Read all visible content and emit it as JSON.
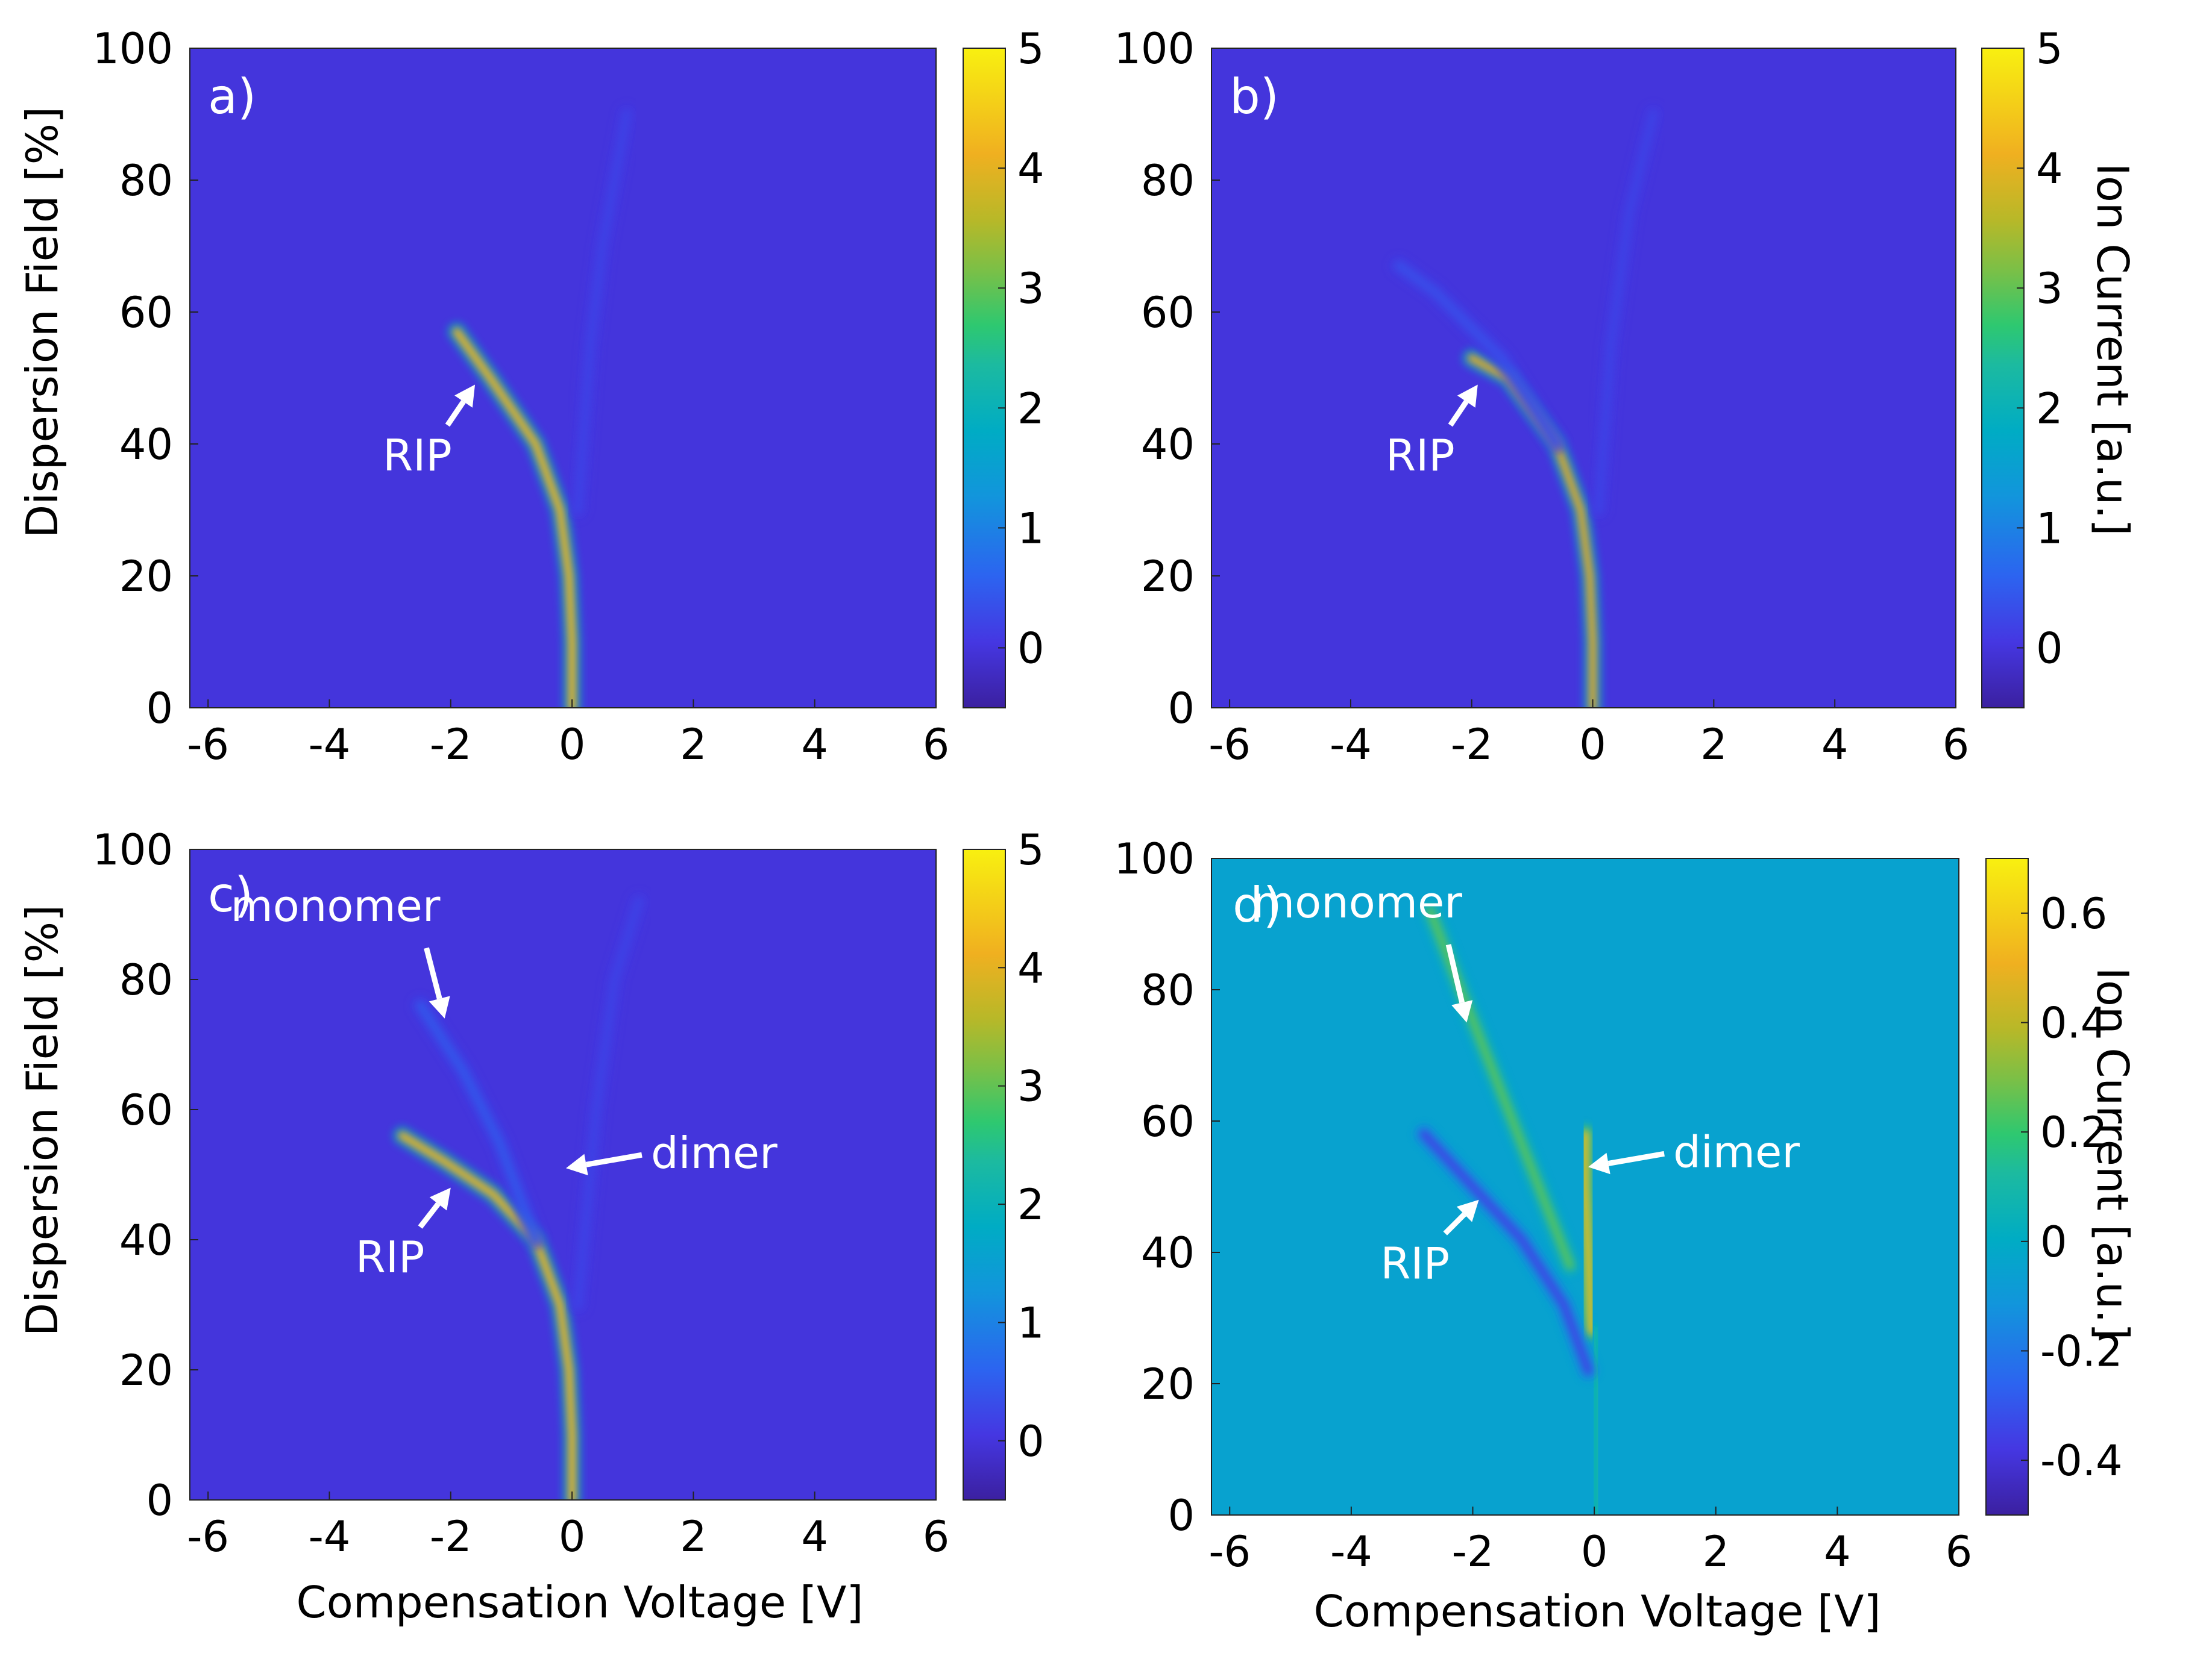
{
  "chart_data": [
    {
      "type": "heatmap",
      "panel_label": "a)",
      "xlabel": "",
      "ylabel": "Dispersion Field [%]",
      "colorbar_label": "",
      "xlim": [
        -6.3,
        6
      ],
      "ylim": [
        0,
        100
      ],
      "xticks": [
        "-6",
        "-4",
        "-2",
        "0",
        "2",
        "4",
        "6"
      ],
      "yticks": [
        "0",
        "20",
        "40",
        "60",
        "80",
        "100"
      ],
      "color_range": [
        -0.5,
        5
      ],
      "colorbar_ticks": [
        "0",
        "1",
        "2",
        "3",
        "4",
        "5"
      ],
      "features": [
        {
          "name": "RIP",
          "points": [
            [
              0.0,
              0
            ],
            [
              0.0,
              10
            ],
            [
              -0.05,
              20
            ],
            [
              -0.2,
              30
            ],
            [
              -0.6,
              40
            ],
            [
              -1.35,
              50
            ],
            [
              -1.9,
              57
            ]
          ],
          "peak": 4.3
        },
        {
          "name": "faint trace",
          "points": [
            [
              0.1,
              30
            ],
            [
              0.3,
              55
            ],
            [
              0.5,
              70
            ],
            [
              0.9,
              90
            ]
          ],
          "peak": 0.2
        }
      ],
      "annotations": [
        {
          "text": "RIP",
          "x": -2.55,
          "y": 36,
          "arrow_to": [
            -1.6,
            49
          ]
        }
      ]
    },
    {
      "type": "heatmap",
      "panel_label": "b)",
      "xlabel": "",
      "ylabel": "",
      "colorbar_label": "Ion Current [a.u.]",
      "xlim": [
        -6.3,
        6
      ],
      "ylim": [
        0,
        100
      ],
      "xticks": [
        "-6",
        "-4",
        "-2",
        "0",
        "2",
        "4",
        "6"
      ],
      "yticks": [
        "0",
        "20",
        "40",
        "60",
        "80",
        "100"
      ],
      "color_range": [
        -0.5,
        5
      ],
      "colorbar_ticks": [
        "0",
        "1",
        "2",
        "3",
        "4",
        "5"
      ],
      "features": [
        {
          "name": "RIP",
          "points": [
            [
              0.0,
              0
            ],
            [
              0.0,
              10
            ],
            [
              -0.05,
              20
            ],
            [
              -0.2,
              30
            ],
            [
              -0.6,
              40
            ],
            [
              -1.4,
              50
            ],
            [
              -2.0,
              53
            ]
          ],
          "peak": 4.0
        },
        {
          "name": "upper branch",
          "points": [
            [
              -0.6,
              40
            ],
            [
              -1.5,
              53
            ],
            [
              -2.6,
              63
            ],
            [
              -3.2,
              67
            ]
          ],
          "peak": 0.35
        },
        {
          "name": "faint trace",
          "points": [
            [
              0.1,
              30
            ],
            [
              0.3,
              55
            ],
            [
              0.6,
              75
            ],
            [
              1.0,
              90
            ]
          ],
          "peak": 0.2
        }
      ],
      "annotations": [
        {
          "text": "RIP",
          "x": -2.85,
          "y": 36,
          "arrow_to": [
            -1.9,
            49
          ]
        }
      ]
    },
    {
      "type": "heatmap",
      "panel_label": "c)",
      "xlabel": "Compensation Voltage [V]",
      "ylabel": "Dispersion Field [%]",
      "colorbar_label": "",
      "xlim": [
        -6.3,
        6
      ],
      "ylim": [
        0,
        100
      ],
      "xticks": [
        "-6",
        "-4",
        "-2",
        "0",
        "2",
        "4",
        "6"
      ],
      "yticks": [
        "0",
        "20",
        "40",
        "60",
        "80",
        "100"
      ],
      "color_range": [
        -0.5,
        5
      ],
      "colorbar_ticks": [
        "0",
        "1",
        "2",
        "3",
        "4",
        "5"
      ],
      "features": [
        {
          "name": "RIP",
          "points": [
            [
              0.0,
              0
            ],
            [
              0.0,
              10
            ],
            [
              -0.05,
              20
            ],
            [
              -0.2,
              30
            ],
            [
              -0.6,
              40
            ],
            [
              -1.3,
              47
            ],
            [
              -2.1,
              52
            ],
            [
              -2.8,
              56
            ]
          ],
          "peak": 4.3
        },
        {
          "name": "monomer",
          "points": [
            [
              -0.6,
              40
            ],
            [
              -1.2,
              55
            ],
            [
              -1.8,
              66
            ],
            [
              -2.5,
              76
            ]
          ],
          "peak": 0.45
        },
        {
          "name": "dimer",
          "points": [
            [
              0.0,
              40
            ],
            [
              0.0,
              55
            ],
            [
              0.0,
              64
            ]
          ],
          "peak": 0.45
        },
        {
          "name": "faint trace",
          "points": [
            [
              0.1,
              30
            ],
            [
              0.4,
              60
            ],
            [
              0.7,
              80
            ],
            [
              1.1,
              92
            ]
          ],
          "peak": 0.2
        }
      ],
      "annotations": [
        {
          "text": "monomer",
          "x": -3.9,
          "y": 89,
          "arrow_to": [
            -2.1,
            74
          ]
        },
        {
          "text": "dimer",
          "x": 1.3,
          "y": 51,
          "arrow_to": [
            -0.1,
            51
          ]
        },
        {
          "text": "RIP",
          "x": -3.0,
          "y": 35,
          "arrow_to": [
            -2.0,
            48
          ]
        }
      ]
    },
    {
      "type": "heatmap",
      "panel_label": "d)",
      "xlabel": "Compensation Voltage [V]",
      "ylabel": "",
      "colorbar_label": "Ion Current [a.u.]",
      "xlim": [
        -6.3,
        6
      ],
      "ylim": [
        0,
        100
      ],
      "xticks": [
        "-6",
        "-4",
        "-2",
        "0",
        "2",
        "4",
        "6"
      ],
      "yticks": [
        "0",
        "20",
        "40",
        "60",
        "80",
        "100"
      ],
      "color_range": [
        -0.5,
        0.7
      ],
      "colorbar_ticks": [
        "-0.4",
        "-0.2",
        "0",
        "0.2",
        "0.4",
        "0.6"
      ],
      "background_value": -0.05,
      "features": [
        {
          "name": "monomer",
          "points": [
            [
              -0.4,
              38
            ],
            [
              -1.0,
              52
            ],
            [
              -1.6,
              66
            ],
            [
              -2.2,
              80
            ],
            [
              -2.7,
              92
            ]
          ],
          "peak": 0.25
        },
        {
          "name": "dimer",
          "points": [
            [
              -0.05,
              28
            ],
            [
              -0.1,
              40
            ],
            [
              -0.15,
              50
            ],
            [
              -0.15,
              58
            ]
          ],
          "peak": 0.55
        },
        {
          "name": "dimer halo",
          "points": [
            [
              0.05,
              45
            ],
            [
              0.05,
              60
            ],
            [
              0.05,
              66
            ]
          ],
          "peak": 0.15
        },
        {
          "name": "lower trace",
          "points": [
            [
              0.05,
              0
            ],
            [
              0.05,
              10
            ],
            [
              0.05,
              20
            ],
            [
              0.0,
              28
            ]
          ],
          "peak": 0.1
        },
        {
          "name": "RIP depletion",
          "points": [
            [
              -0.1,
              22
            ],
            [
              -0.5,
              32
            ],
            [
              -1.2,
              42
            ],
            [
              -2.0,
              50
            ],
            [
              -2.8,
              58
            ]
          ],
          "peak": -0.35
        }
      ],
      "annotations": [
        {
          "text": "monomer",
          "x": -3.9,
          "y": 91,
          "arrow_to": [
            -2.1,
            75
          ]
        },
        {
          "text": "dimer",
          "x": 1.3,
          "y": 53,
          "arrow_to": [
            -0.1,
            53
          ]
        },
        {
          "text": "RIP",
          "x": -2.95,
          "y": 36,
          "arrow_to": [
            -1.9,
            48
          ]
        }
      ]
    }
  ]
}
